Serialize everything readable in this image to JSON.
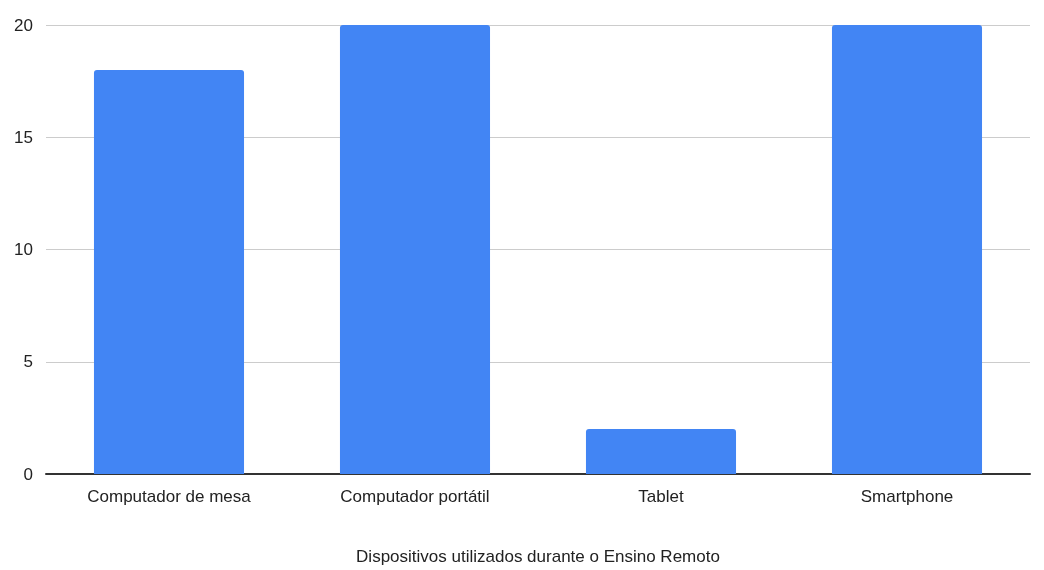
{
  "chart_data": {
    "type": "bar",
    "xlabel": "Dispositivos utilizados durante o Ensino Remoto",
    "categories": [
      "Computador de mesa",
      "Computador portátil",
      "Tablet",
      "Smartphone"
    ],
    "values": [
      18,
      20,
      2,
      20
    ],
    "color": "#4285f4",
    "ylim": [
      0,
      20
    ],
    "yticks": [
      0,
      5,
      10,
      15,
      20
    ],
    "grid": "y"
  }
}
